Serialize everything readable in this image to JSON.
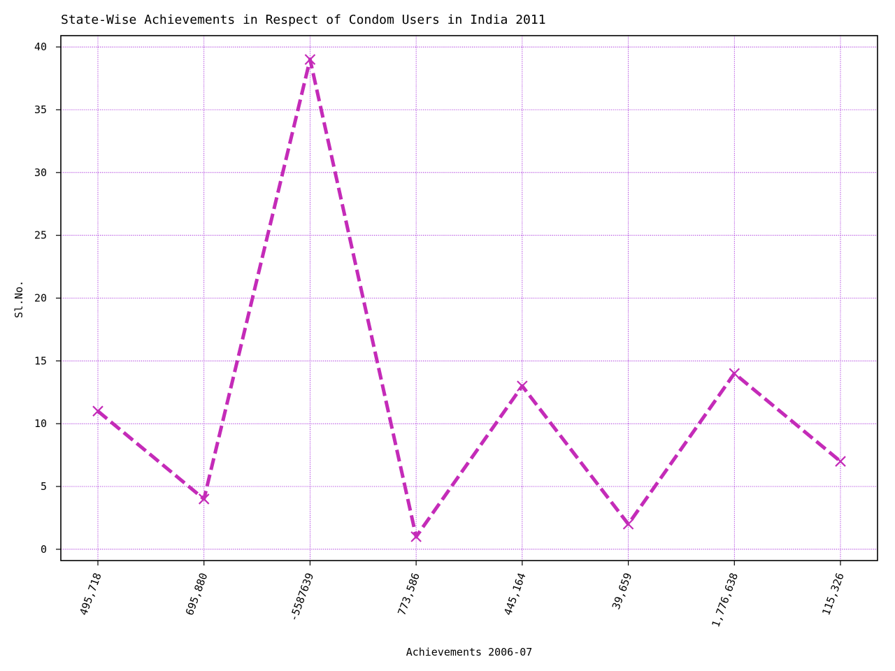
{
  "chart_data": {
    "type": "line",
    "title": "State-Wise Achievements in Respect of Condom Users in India 2011",
    "xlabel": "Achievements 2006-07",
    "ylabel": "Sl.No.",
    "categories": [
      "495,718",
      "695,880",
      "-5587639",
      "773,586",
      "445,164",
      "39,659",
      "1,776,638",
      "115,326"
    ],
    "series": [
      {
        "values": [
          11,
          4,
          39,
          1,
          13,
          2,
          14,
          7
        ]
      }
    ],
    "ylim": [
      -0.9,
      40.9
    ],
    "yticks": [
      0,
      5,
      10,
      15,
      20,
      25,
      30,
      35,
      40
    ],
    "grid": true,
    "line_style": "dashed",
    "marker": "x",
    "colors": {
      "series": "#c42bb8",
      "grid": "#9400d3",
      "axes": "#000000",
      "background": "#ffffff"
    }
  }
}
